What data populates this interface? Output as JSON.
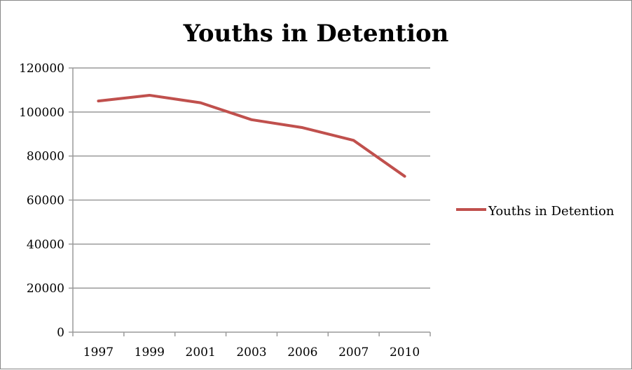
{
  "chart_data": {
    "type": "line",
    "title": "Youths in Detention",
    "xlabel": "",
    "ylabel": "",
    "categories": [
      "1997",
      "1999",
      "2001",
      "2003",
      "2006",
      "2007",
      "2010"
    ],
    "series": [
      {
        "name": "Youths in Detention",
        "values": [
          105000,
          107600,
          104200,
          96500,
          92900,
          87100,
          70800
        ],
        "color": "#c0504d"
      }
    ],
    "ylim": [
      0,
      120000
    ],
    "yticks": [
      0,
      20000,
      40000,
      60000,
      80000,
      100000,
      120000
    ],
    "grid": true,
    "legend": "right"
  }
}
